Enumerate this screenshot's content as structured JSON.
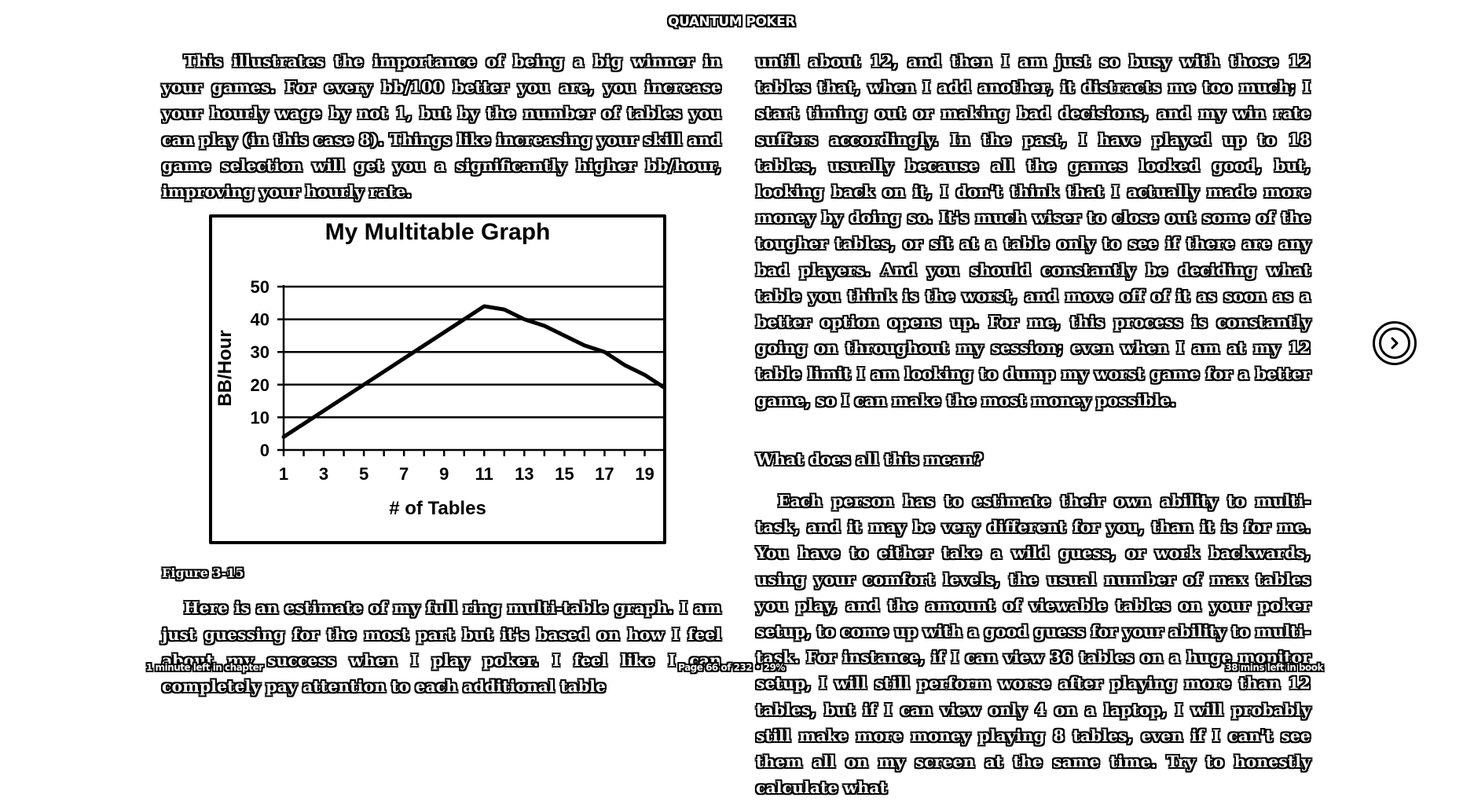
{
  "header": {
    "book_title": "QUANTUM POKER"
  },
  "left_column": {
    "para1": "This illustrates the importance of being a big winner in your games. For every bb/100 better you are, you increase your hourly wage by not 1, but by the number of tables you can play (in this case 8). Things like increasing your skill and game selection will get you a significantly higher bb/hour, improving your hourly rate.",
    "figure_caption": "Figure 3-15",
    "para2": "Here is an estimate of my full ring multi-table graph. I am just guessing for the most part but it's based on how I feel about my success when I play poker. I feel like I can completely pay attention to each additional table"
  },
  "right_column": {
    "para1": "until about 12, and then I am just so busy with those 12 tables that, when I add another, it distracts me too much; I start timing out or making bad decisions, and my win rate suffers accordingly. In the past, I have played up to 18 tables, usually because all the games looked good, but, looking back on it, I don't think that I actually made more money by doing so. It's much wiser to close out some of the tougher tables, or sit at a table only to see if there are any bad players. And you should constantly be deciding what table you think is the worst, and move off of it as soon as a better option opens up. For me, this process is constantly going on throughout my session; even when I am at my 12 table limit I am looking to dump my worst game for a better game, so I can make the most money possible.",
    "heading": "What does all this mean?",
    "para2": "Each person has to estimate their own ability to multi-task, and it may be very different for you, than it is for me. You have to either take a wild guess, or work backwards, using your comfort levels, the usual number of max tables you play, and the amount of viewable tables on your poker setup, to come up with a good guess for your ability to multi-task. For instance, if I can view 36 tables on a huge monitor setup, I will still perform worse after playing more than 12 tables, but if I can view only 4 on a laptop, I will probably still make more money playing 8 tables, even if I can't see them all on my screen at the same time. Try to honestly calculate what"
  },
  "chart_data": {
    "type": "line",
    "title": "My Multitable Graph",
    "xlabel": "# of Tables",
    "ylabel": "BB/Hour",
    "x_ticks": [
      1,
      3,
      5,
      7,
      9,
      11,
      13,
      15,
      17,
      19
    ],
    "y_ticks": [
      0,
      10,
      20,
      30,
      40,
      50
    ],
    "xlim": [
      1,
      20
    ],
    "ylim": [
      0,
      50
    ],
    "grid": "horizontal",
    "series": [
      {
        "x": [
          1,
          2,
          3,
          4,
          5,
          6,
          7,
          8,
          9,
          10,
          11,
          12,
          13,
          14,
          15,
          16,
          17,
          18,
          19,
          20
        ],
        "values": [
          4,
          8,
          12,
          16,
          20,
          24,
          28,
          32,
          36,
          40,
          44,
          43,
          40,
          38,
          35,
          32,
          30,
          26,
          23,
          19
        ]
      }
    ]
  },
  "footer": {
    "left": "1 minute left in chapter",
    "center": "Page 66 of 232 • 29%",
    "right": "38 mins left in book"
  },
  "navigation": {
    "next_icon": "chevron-right-circle-icon"
  }
}
